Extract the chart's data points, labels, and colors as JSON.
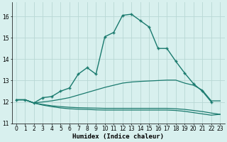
{
  "xlabel": "Humidex (Indice chaleur)",
  "background_color": "#d8f0ee",
  "grid_color": "#b8d8d4",
  "line_color": "#1a7a6e",
  "xlim": [
    -0.5,
    23.5
  ],
  "ylim": [
    11.0,
    16.65
  ],
  "yticks": [
    11,
    12,
    13,
    14,
    15,
    16
  ],
  "xticks": [
    0,
    1,
    2,
    3,
    4,
    5,
    6,
    7,
    8,
    9,
    10,
    11,
    12,
    13,
    14,
    15,
    16,
    17,
    18,
    19,
    20,
    21,
    22,
    23
  ],
  "series": [
    {
      "x": [
        0,
        1,
        2,
        3,
        4,
        5,
        6,
        7,
        8,
        9,
        10,
        11,
        12,
        13,
        14,
        15,
        16,
        17,
        18,
        19,
        20,
        21,
        22
      ],
      "y": [
        12.1,
        12.1,
        11.95,
        12.2,
        12.25,
        12.5,
        12.65,
        13.3,
        13.6,
        13.3,
        15.05,
        15.25,
        16.05,
        16.1,
        15.8,
        15.5,
        14.5,
        14.5,
        13.9,
        13.35,
        12.85,
        12.5,
        12.0
      ],
      "has_markers": true,
      "lw": 1.0
    },
    {
      "x": [
        0,
        1,
        2,
        3,
        4,
        5,
        6,
        7,
        8,
        9,
        10,
        11,
        12,
        13,
        14,
        15,
        16,
        17,
        18,
        19,
        20,
        21,
        22,
        23
      ],
      "y": [
        12.1,
        12.1,
        11.95,
        12.0,
        12.05,
        12.12,
        12.2,
        12.32,
        12.44,
        12.56,
        12.68,
        12.78,
        12.88,
        12.93,
        12.96,
        12.98,
        13.0,
        13.02,
        13.02,
        12.88,
        12.78,
        12.55,
        12.05,
        12.05
      ],
      "has_markers": false,
      "lw": 0.9
    },
    {
      "x": [
        0,
        1,
        2,
        3,
        4,
        5,
        6,
        7,
        8,
        9,
        10,
        11,
        12,
        13,
        14,
        15,
        16,
        17,
        18,
        19,
        20,
        21,
        22,
        23
      ],
      "y": [
        12.1,
        12.1,
        11.95,
        11.88,
        11.82,
        11.78,
        11.75,
        11.73,
        11.72,
        11.71,
        11.7,
        11.7,
        11.7,
        11.7,
        11.7,
        11.7,
        11.7,
        11.7,
        11.68,
        11.65,
        11.6,
        11.55,
        11.48,
        11.42
      ],
      "has_markers": false,
      "lw": 0.9
    },
    {
      "x": [
        0,
        1,
        2,
        3,
        4,
        5,
        6,
        7,
        8,
        9,
        10,
        11,
        12,
        13,
        14,
        15,
        16,
        17,
        18,
        19,
        20,
        21,
        22,
        23
      ],
      "y": [
        12.1,
        12.1,
        11.95,
        11.85,
        11.78,
        11.72,
        11.68,
        11.66,
        11.65,
        11.63,
        11.62,
        11.62,
        11.62,
        11.62,
        11.62,
        11.62,
        11.62,
        11.62,
        11.6,
        11.56,
        11.5,
        11.44,
        11.38,
        11.42
      ],
      "has_markers": false,
      "lw": 0.9
    }
  ]
}
